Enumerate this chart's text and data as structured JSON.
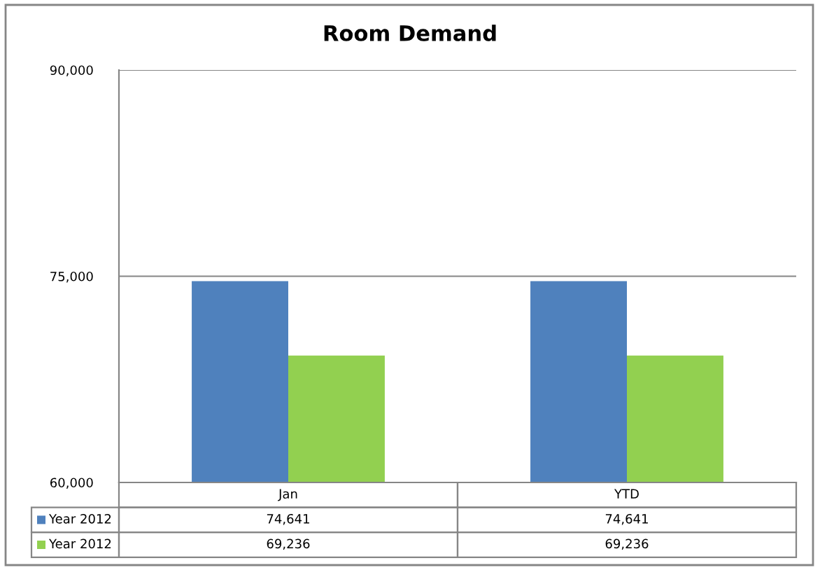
{
  "chart_data": {
    "type": "bar",
    "title": "Room Demand",
    "categories": [
      "Jan",
      "YTD"
    ],
    "series": [
      {
        "name": "Year 2012",
        "color": "#4f81bd",
        "values": [
          74641,
          74641
        ],
        "value_labels": [
          "74,641",
          "74,641"
        ]
      },
      {
        "name": "Year 2012",
        "color": "#92d050",
        "values": [
          69236,
          69236
        ],
        "value_labels": [
          "69,236",
          "69,236"
        ]
      }
    ],
    "ylim": [
      60000,
      90000
    ],
    "yticks": [
      {
        "value": 60000,
        "label": "60,000"
      },
      {
        "value": 75000,
        "label": "75,000"
      },
      {
        "value": 90000,
        "label": "90,000"
      }
    ],
    "grid": "y",
    "legend": "bottom"
  }
}
